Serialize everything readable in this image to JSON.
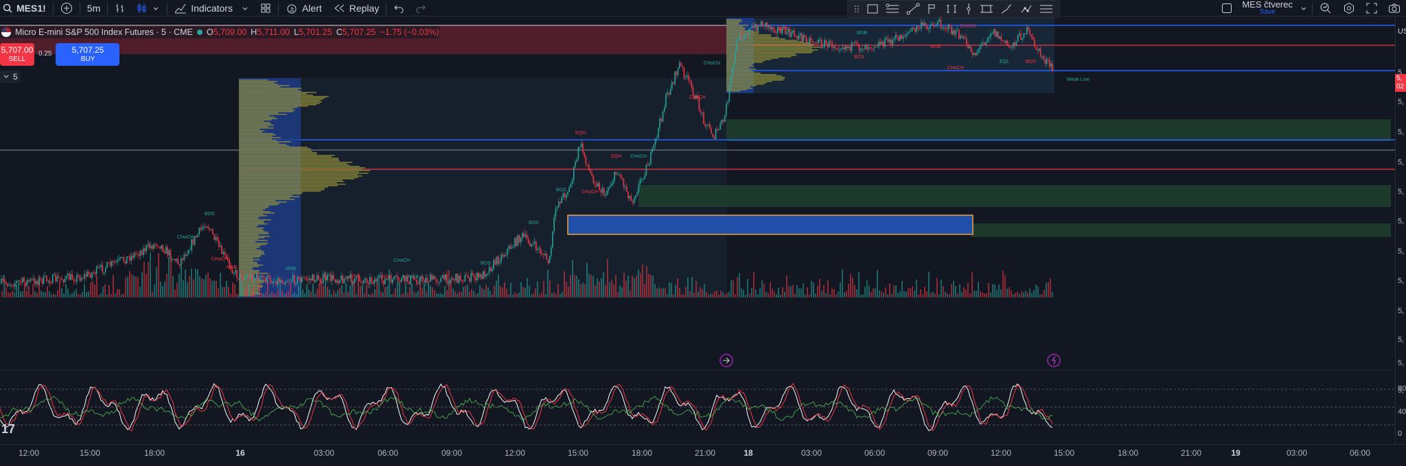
{
  "toolbar": {
    "symbol": "MES1!",
    "interval": "5m",
    "indicators": "Indicators",
    "alert": "Alert",
    "replay": "Replay"
  },
  "layout": {
    "name": "MES čtverec",
    "save": "Save"
  },
  "legend": {
    "title": "Micro E-mini S&P 500 Index Futures · 5 · CME",
    "o_label": "O",
    "o": "5,709.00",
    "h_label": "H",
    "h": "5,711.00",
    "l_label": "L",
    "l": "5,701.25",
    "c_label": "C",
    "c": "5,707.25",
    "change": "−1.75 (−0.03%)"
  },
  "trade": {
    "sell_price": "5,707.00",
    "sell_label": "SELL",
    "spread": "0.25",
    "buy_price": "5,707.25",
    "buy_label": "BUY"
  },
  "interval_chip": "5",
  "price_scale": {
    "currency": "US",
    "labels": [
      "5,",
      "5,",
      "5,",
      "5,",
      "5,",
      "5,",
      "5,",
      "5,",
      "5,",
      "5,",
      "5,",
      "5,"
    ],
    "tag_top": "5,",
    "tag_bottom": "02"
  },
  "oscillator_scale": [
    "80",
    "40",
    "0"
  ],
  "time_axis": [
    {
      "label": "12:00",
      "day": false
    },
    {
      "label": "15:00",
      "day": false
    },
    {
      "label": "18:00",
      "day": false
    },
    {
      "label": "16",
      "day": true
    },
    {
      "label": "03:00",
      "day": false
    },
    {
      "label": "06:00",
      "day": false
    },
    {
      "label": "09:00",
      "day": false
    },
    {
      "label": "12:00",
      "day": false
    },
    {
      "label": "15:00",
      "day": false
    },
    {
      "label": "18:00",
      "day": false
    },
    {
      "label": "21:00",
      "day": false
    },
    {
      "label": "18",
      "day": true
    },
    {
      "label": "03:00",
      "day": false
    },
    {
      "label": "06:00",
      "day": false
    },
    {
      "label": "09:00",
      "day": false
    },
    {
      "label": "12:00",
      "day": false
    },
    {
      "label": "15:00",
      "day": false
    },
    {
      "label": "18:00",
      "day": false
    },
    {
      "label": "21:00",
      "day": false
    },
    {
      "label": "19",
      "day": true
    },
    {
      "label": "03:00",
      "day": false
    },
    {
      "label": "06:00",
      "day": false
    }
  ],
  "annotations": {
    "bos": "BOS",
    "choch": "CHoCH",
    "msb": "MSB",
    "eqh": "EQH",
    "eql": "EQL",
    "weak_low": "Weak Low",
    "more": "MOE"
  },
  "logo": "17",
  "colors": {
    "up": "#26a69a",
    "down": "#f23645",
    "volume_profile": "#9e9a3c",
    "profile_blue": "#2962ff",
    "supply": "#f23645",
    "demand": "#26a69a",
    "stoch_k": "#ffffff",
    "stoch_d": "#f23645",
    "rsi": "#4caf50"
  }
}
